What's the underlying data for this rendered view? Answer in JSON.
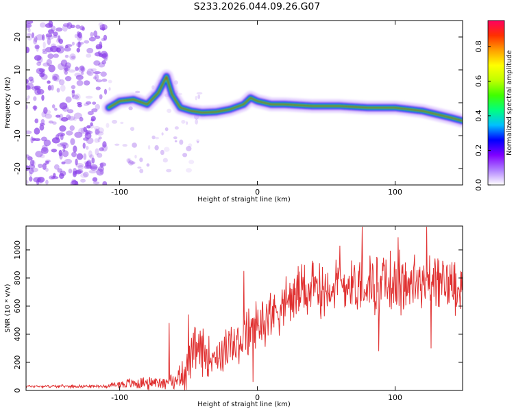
{
  "figure": {
    "title": "S233.2026.044.09.26.G07"
  },
  "colors": {
    "snr_line": "#e03030",
    "axis": "#000000",
    "track_core": "#e02010",
    "track_mid": "#20e040",
    "track_outer": "#1010ff",
    "noise": "#8a40e8"
  },
  "chart_data": [
    {
      "type": "heatmap",
      "name": "spectrogram",
      "xlabel": "Height of straight line (km)",
      "ylabel": "Frequency (Hz)",
      "xlim": [
        -168,
        149
      ],
      "ylim": [
        -25,
        25
      ],
      "xticks": [
        -100,
        0,
        100
      ],
      "xtick_labels": [
        "-100",
        "0",
        "100"
      ],
      "yticks": [
        20,
        10,
        0,
        -10,
        -20
      ],
      "ytick_labels": [
        "20",
        "10",
        "0",
        "-10",
        "-20"
      ],
      "noise_region_x": [
        -168,
        -110
      ],
      "track": [
        {
          "x": -108,
          "f": -1.5
        },
        {
          "x": -100,
          "f": 0.5
        },
        {
          "x": -90,
          "f": 1.0
        },
        {
          "x": -80,
          "f": -0.5
        },
        {
          "x": -72,
          "f": 3.0
        },
        {
          "x": -66,
          "f": 8.0
        },
        {
          "x": -62,
          "f": 2.5
        },
        {
          "x": -56,
          "f": -1.5
        },
        {
          "x": -48,
          "f": -2.5
        },
        {
          "x": -40,
          "f": -3.0
        },
        {
          "x": -30,
          "f": -2.8
        },
        {
          "x": -20,
          "f": -2.0
        },
        {
          "x": -10,
          "f": -0.5
        },
        {
          "x": -5,
          "f": 1.5
        },
        {
          "x": 0,
          "f": 0.5
        },
        {
          "x": 10,
          "f": -0.5
        },
        {
          "x": 20,
          "f": -0.5
        },
        {
          "x": 40,
          "f": -1.0
        },
        {
          "x": 60,
          "f": -1.0
        },
        {
          "x": 80,
          "f": -1.5
        },
        {
          "x": 100,
          "f": -1.5
        },
        {
          "x": 110,
          "f": -2.0
        },
        {
          "x": 120,
          "f": -2.5
        },
        {
          "x": 130,
          "f": -3.5
        },
        {
          "x": 140,
          "f": -4.5
        },
        {
          "x": 149,
          "f": -5.5
        }
      ],
      "colorbar": {
        "label": "Normalized spectral amplitude",
        "range": [
          0.0,
          0.95
        ],
        "ticks": [
          0.0,
          0.2,
          0.4,
          0.6,
          0.8
        ],
        "tick_labels": [
          "0.0",
          "0.2",
          "0.4",
          "0.6",
          "0.8"
        ],
        "stops": [
          "#ffffff",
          "#b080ff",
          "#8000ff",
          "#0000ff",
          "#00c0ff",
          "#00ff80",
          "#40ff00",
          "#c0ff00",
          "#ffff00",
          "#ffa000",
          "#ff3000",
          "#ff0060"
        ]
      }
    },
    {
      "type": "line",
      "name": "snr",
      "xlabel": "Height of straight line (km)",
      "ylabel": "SNR (10 * v/v)",
      "xlim": [
        -168,
        149
      ],
      "ylim": [
        0,
        1170
      ],
      "xticks": [
        -100,
        0,
        100
      ],
      "xtick_labels": [
        "-100",
        "0",
        "100"
      ],
      "yticks": [
        0,
        200,
        400,
        600,
        800,
        1000
      ],
      "ytick_labels": [
        "0",
        "200",
        "400",
        "600",
        "800",
        "1000"
      ],
      "envelope": [
        {
          "x": -168,
          "mean": 30,
          "amp": 12
        },
        {
          "x": -110,
          "mean": 30,
          "amp": 12
        },
        {
          "x": -100,
          "mean": 45,
          "amp": 40
        },
        {
          "x": -80,
          "mean": 55,
          "amp": 60
        },
        {
          "x": -60,
          "mean": 65,
          "amp": 60
        },
        {
          "x": -52,
          "mean": 150,
          "amp": 180
        },
        {
          "x": -45,
          "mean": 280,
          "amp": 200
        },
        {
          "x": -30,
          "mean": 250,
          "amp": 180
        },
        {
          "x": -15,
          "mean": 320,
          "amp": 200
        },
        {
          "x": -5,
          "mean": 420,
          "amp": 220
        },
        {
          "x": 10,
          "mean": 550,
          "amp": 220
        },
        {
          "x": 30,
          "mean": 700,
          "amp": 230
        },
        {
          "x": 60,
          "mean": 760,
          "amp": 260
        },
        {
          "x": 100,
          "mean": 760,
          "amp": 270
        },
        {
          "x": 149,
          "mean": 760,
          "amp": 240
        }
      ],
      "spikes": [
        {
          "x": -64,
          "y": 480
        },
        {
          "x": -50,
          "y": 540
        },
        {
          "x": -10,
          "y": 850
        },
        {
          "x": -3,
          "y": 60
        },
        {
          "x": 60,
          "y": 1030
        },
        {
          "x": 76,
          "y": 1165
        },
        {
          "x": 88,
          "y": 280
        },
        {
          "x": 102,
          "y": 1090
        },
        {
          "x": 123,
          "y": 1165
        },
        {
          "x": 126,
          "y": 300
        }
      ]
    }
  ]
}
